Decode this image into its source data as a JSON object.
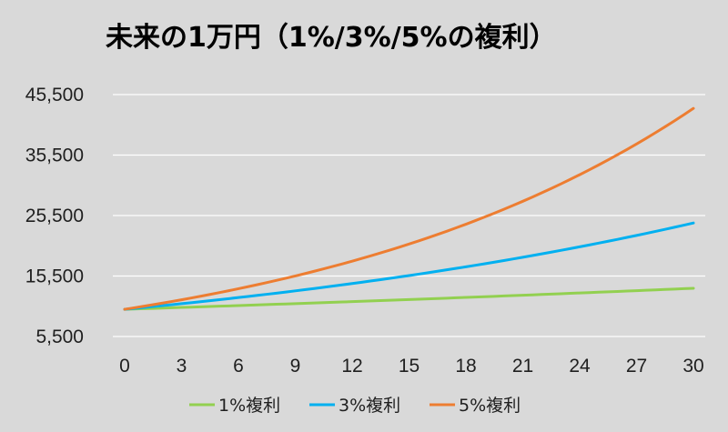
{
  "chart_data": {
    "type": "line",
    "title": "未来の1万円（1%/3%/5%の複利）",
    "xlabel": "",
    "ylabel": "",
    "x": [
      0,
      3,
      6,
      9,
      12,
      15,
      18,
      21,
      24,
      27,
      30
    ],
    "x_tick_labels": [
      "0",
      "3",
      "6",
      "9",
      "12",
      "15",
      "18",
      "21",
      "24",
      "27",
      "30"
    ],
    "y_ticks": [
      5500,
      15500,
      25500,
      35500,
      45500
    ],
    "y_tick_labels": [
      "5,500",
      "15,500",
      "25,500",
      "35,500",
      "45,500"
    ],
    "ylim": [
      5500,
      45500
    ],
    "xlim": [
      0,
      30
    ],
    "grid": "horizontal",
    "legend_position": "bottom",
    "series": [
      {
        "name": "1%複利",
        "color": "#92d050",
        "values": [
          10000,
          10303,
          10615,
          10937,
          11268,
          11610,
          11961,
          12324,
          12697,
          13082,
          13478
        ]
      },
      {
        "name": "3%複利",
        "color": "#00b0f0",
        "values": [
          10000,
          10927,
          11941,
          13048,
          14258,
          15580,
          17024,
          18603,
          20328,
          22213,
          24273
        ]
      },
      {
        "name": "5%複利",
        "color": "#ed7d31",
        "values": [
          10000,
          11576,
          13401,
          15513,
          17959,
          20789,
          24066,
          27860,
          32251,
          37335,
          43219
        ]
      }
    ]
  }
}
